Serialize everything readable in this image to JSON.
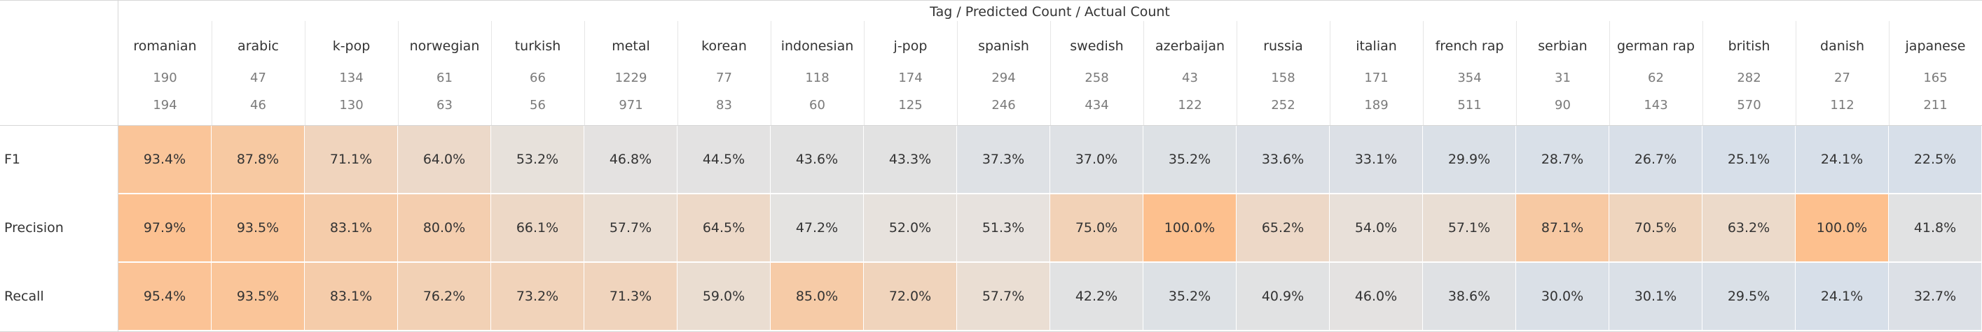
{
  "chart_data": {
    "type": "heatmap",
    "title": "Tag / Predicted Count / Actual Count",
    "columns": [
      {
        "tag": "romanian",
        "predicted": "190",
        "actual": "194"
      },
      {
        "tag": "arabic",
        "predicted": "47",
        "actual": "46"
      },
      {
        "tag": "k-pop",
        "predicted": "134",
        "actual": "130"
      },
      {
        "tag": "norwegian",
        "predicted": "61",
        "actual": "63"
      },
      {
        "tag": "turkish",
        "predicted": "66",
        "actual": "56"
      },
      {
        "tag": "metal",
        "predicted": "1229",
        "actual": "971"
      },
      {
        "tag": "korean",
        "predicted": "77",
        "actual": "83"
      },
      {
        "tag": "indonesian",
        "predicted": "118",
        "actual": "60"
      },
      {
        "tag": "j-pop",
        "predicted": "174",
        "actual": "125"
      },
      {
        "tag": "spanish",
        "predicted": "294",
        "actual": "246"
      },
      {
        "tag": "swedish",
        "predicted": "258",
        "actual": "434"
      },
      {
        "tag": "azerbaijan",
        "predicted": "43",
        "actual": "122"
      },
      {
        "tag": "russia",
        "predicted": "158",
        "actual": "252"
      },
      {
        "tag": "italian",
        "predicted": "171",
        "actual": "189"
      },
      {
        "tag": "french rap",
        "predicted": "354",
        "actual": "511"
      },
      {
        "tag": "serbian",
        "predicted": "31",
        "actual": "90"
      },
      {
        "tag": "german rap",
        "predicted": "62",
        "actual": "143"
      },
      {
        "tag": "british",
        "predicted": "282",
        "actual": "570"
      },
      {
        "tag": "danish",
        "predicted": "27",
        "actual": "112"
      },
      {
        "tag": "japanese",
        "predicted": "165",
        "actual": "211"
      }
    ],
    "rows": [
      {
        "label": "F1",
        "values": [
          93.4,
          87.8,
          71.1,
          64.0,
          53.2,
          46.8,
          44.5,
          43.6,
          43.3,
          37.3,
          37.0,
          35.2,
          33.6,
          33.1,
          29.9,
          28.7,
          26.7,
          25.1,
          24.1,
          22.5
        ]
      },
      {
        "label": "Precision",
        "values": [
          97.9,
          93.5,
          83.1,
          80.0,
          66.1,
          57.7,
          64.5,
          47.2,
          52.0,
          51.3,
          75.0,
          100.0,
          65.2,
          54.0,
          57.1,
          87.1,
          70.5,
          63.2,
          100.0,
          41.8
        ]
      },
      {
        "label": "Recall",
        "values": [
          95.4,
          93.5,
          83.1,
          76.2,
          73.2,
          71.3,
          59.0,
          85.0,
          72.0,
          57.7,
          42.2,
          35.2,
          40.9,
          46.0,
          38.6,
          30.0,
          30.1,
          29.5,
          24.1,
          32.7
        ]
      }
    ],
    "value_suffix": "%",
    "color_scale": {
      "low": "#d7dfe9",
      "mid": "#e6e3e0",
      "high": "#fdc08e"
    }
  }
}
